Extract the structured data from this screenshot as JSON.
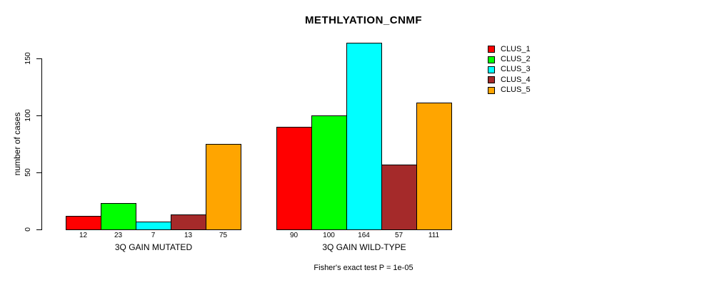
{
  "title": "METHLYATION_CNMF",
  "y_axis": {
    "label": "number of cases",
    "ticks": [
      0,
      50,
      100,
      150
    ]
  },
  "footer": "Fisher's exact test P = 1e-05",
  "chart_data": {
    "type": "bar",
    "title": "METHLYATION_CNMF",
    "xlabel": "",
    "ylabel": "number of cases",
    "ylim": [
      0,
      150
    ],
    "yticks": [
      0,
      50,
      100,
      150
    ],
    "grid": false,
    "legend_position": "top-right",
    "categories": [
      "3Q GAIN MUTATED",
      "3Q GAIN WILD-TYPE"
    ],
    "series": [
      {
        "name": "CLUS_1",
        "color": "#FF0000",
        "values": [
          12,
          90
        ]
      },
      {
        "name": "CLUS_2",
        "color": "#00FF00",
        "values": [
          23,
          100
        ]
      },
      {
        "name": "CLUS_3",
        "color": "#00FFFF",
        "values": [
          7,
          164
        ]
      },
      {
        "name": "CLUS_4",
        "color": "#A52A2A",
        "values": [
          13,
          57
        ]
      },
      {
        "name": "CLUS_5",
        "color": "#FFA500",
        "values": [
          75,
          111
        ]
      }
    ],
    "bar_value_labels": true,
    "annotation": "Fisher's exact test P = 1e-05"
  }
}
